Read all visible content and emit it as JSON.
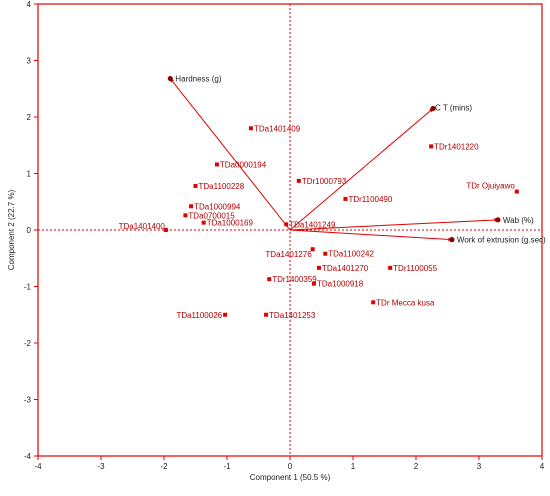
{
  "chart_data": {
    "type": "scatter",
    "subtype": "biplot",
    "xlabel": "Component 1  (50.5 %)",
    "ylabel": "Component 2  (22.7 %)",
    "xlim": [
      -4,
      4
    ],
    "ylim": [
      -4,
      4
    ],
    "xticks": [
      -4,
      -3,
      -2,
      -1,
      0,
      1,
      2,
      3,
      4
    ],
    "yticks": [
      -4,
      -3,
      -2,
      -1,
      0,
      1,
      2,
      3,
      4
    ],
    "grid": false,
    "zero_lines": "dotted",
    "color": "#e00000",
    "vectors": [
      {
        "label": "Hardness (g)",
        "x": -1.9,
        "y": 2.68
      },
      {
        "label": "C T (mins)",
        "x": 2.27,
        "y": 2.15
      },
      {
        "label": "Wab (%)",
        "x": 3.3,
        "y": 0.18
      },
      {
        "label": "Work of extrusion (g.sec)",
        "x": 2.57,
        "y": -0.17
      }
    ],
    "points": [
      {
        "label": "TDa1401409",
        "x": -0.62,
        "y": 1.8
      },
      {
        "label": "TDa0000194",
        "x": -1.16,
        "y": 1.16
      },
      {
        "label": "TDa1100228",
        "x": -1.5,
        "y": 0.78
      },
      {
        "label": "TDa1000994",
        "x": -1.57,
        "y": 0.42
      },
      {
        "label": "TDa0700015",
        "x": -1.66,
        "y": 0.26
      },
      {
        "label": "TDa1000169",
        "x": -1.37,
        "y": 0.13
      },
      {
        "label": "TDa1401400",
        "x": -1.97,
        "y": 0.0
      },
      {
        "label": "TDa1401249",
        "x": -0.06,
        "y": 0.1
      },
      {
        "label": "TDr1000793",
        "x": 0.14,
        "y": 0.87
      },
      {
        "label": "TDr1100490",
        "x": 0.88,
        "y": 0.55
      },
      {
        "label": "TDr1401220",
        "x": 2.24,
        "y": 1.48
      },
      {
        "label": "TDr Ojuiyawo",
        "x": 3.6,
        "y": 0.68
      },
      {
        "label": "TDa1401276",
        "x": 0.36,
        "y": -0.34
      },
      {
        "label": "TDa1100242",
        "x": 0.56,
        "y": -0.42
      },
      {
        "label": "TDa1401270",
        "x": 0.46,
        "y": -0.67
      },
      {
        "label": "TDr1100055",
        "x": 1.59,
        "y": -0.67
      },
      {
        "label": "TDr1400359",
        "x": -0.33,
        "y": -0.87
      },
      {
        "label": "TDa1000918",
        "x": 0.38,
        "y": -0.95
      },
      {
        "label": "TDr Mecca kusa",
        "x": 1.32,
        "y": -1.28
      },
      {
        "label": "TDa1100026",
        "x": -1.03,
        "y": -1.5
      },
      {
        "label": "TDa1401253",
        "x": -0.38,
        "y": -1.5
      }
    ]
  }
}
